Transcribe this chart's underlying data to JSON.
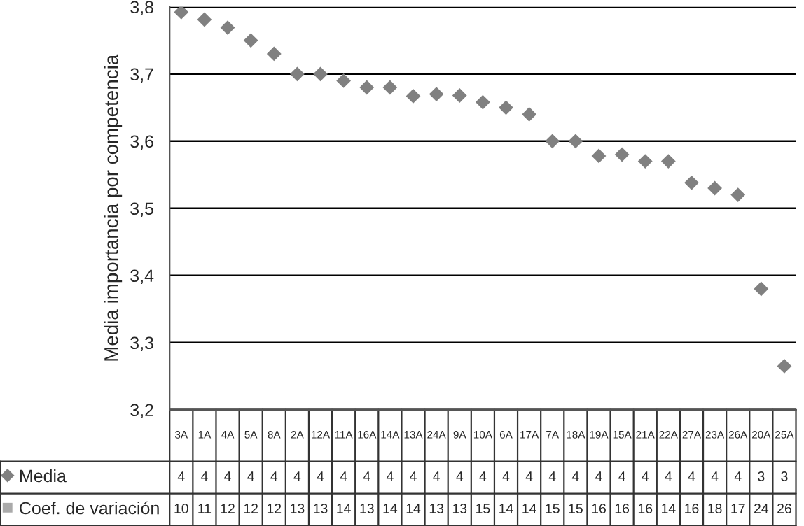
{
  "chart_data": {
    "type": "scatter",
    "ylabel": "Media importancia por competencia",
    "categories": [
      "3A",
      "1A",
      "4A",
      "5A",
      "8A",
      "2A",
      "12A",
      "11A",
      "16A",
      "14A",
      "13A",
      "24A",
      "9A",
      "10A",
      "6A",
      "17A",
      "7A",
      "18A",
      "19A",
      "15A",
      "21A",
      "22A",
      "27A",
      "23A",
      "26A",
      "20A",
      "25A"
    ],
    "series": [
      {
        "name": "Media",
        "color": "#808080",
        "marker": "diamond",
        "values": [
          3.792,
          3.781,
          3.769,
          3.75,
          3.73,
          3.7,
          3.7,
          3.69,
          3.68,
          3.68,
          3.667,
          3.67,
          3.668,
          3.658,
          3.65,
          3.64,
          3.6,
          3.6,
          3.578,
          3.58,
          3.57,
          3.57,
          3.538,
          3.53,
          3.52,
          3.38,
          3.265
        ],
        "value_labels": [
          "4",
          "4",
          "4",
          "4",
          "4",
          "4",
          "4",
          "4",
          "4",
          "4",
          "4",
          "4",
          "4",
          "4",
          "4",
          "4",
          "4",
          "4",
          "4",
          "4",
          "4",
          "4",
          "4",
          "4",
          "4",
          "3",
          "3"
        ]
      },
      {
        "name": "Coef. de variación",
        "color": "#aaaaaa",
        "marker": "square",
        "values": [
          null,
          null,
          null,
          null,
          null,
          null,
          null,
          null,
          null,
          null,
          null,
          null,
          null,
          null,
          null,
          null,
          null,
          null,
          null,
          null,
          null,
          null,
          null,
          null,
          null,
          null,
          null
        ],
        "value_labels": [
          "10",
          "11",
          "12",
          "12",
          "12",
          "13",
          "13",
          "14",
          "13",
          "14",
          "14",
          "13",
          "13",
          "15",
          "14",
          "14",
          "15",
          "15",
          "16",
          "16",
          "16",
          "14",
          "16",
          "18",
          "17",
          "24",
          "26"
        ]
      }
    ],
    "ylim": [
      3.2,
      3.8
    ],
    "yticks": [
      {
        "value": 3.2,
        "label": "3,2"
      },
      {
        "value": 3.3,
        "label": "3,3"
      },
      {
        "value": 3.4,
        "label": "3,4"
      },
      {
        "value": 3.5,
        "label": "3,5"
      },
      {
        "value": 3.6,
        "label": "3,6"
      },
      {
        "value": 3.7,
        "label": "3,7"
      },
      {
        "value": 3.8,
        "label": "3,8"
      }
    ],
    "grid": "y",
    "legend": "bottom left"
  }
}
